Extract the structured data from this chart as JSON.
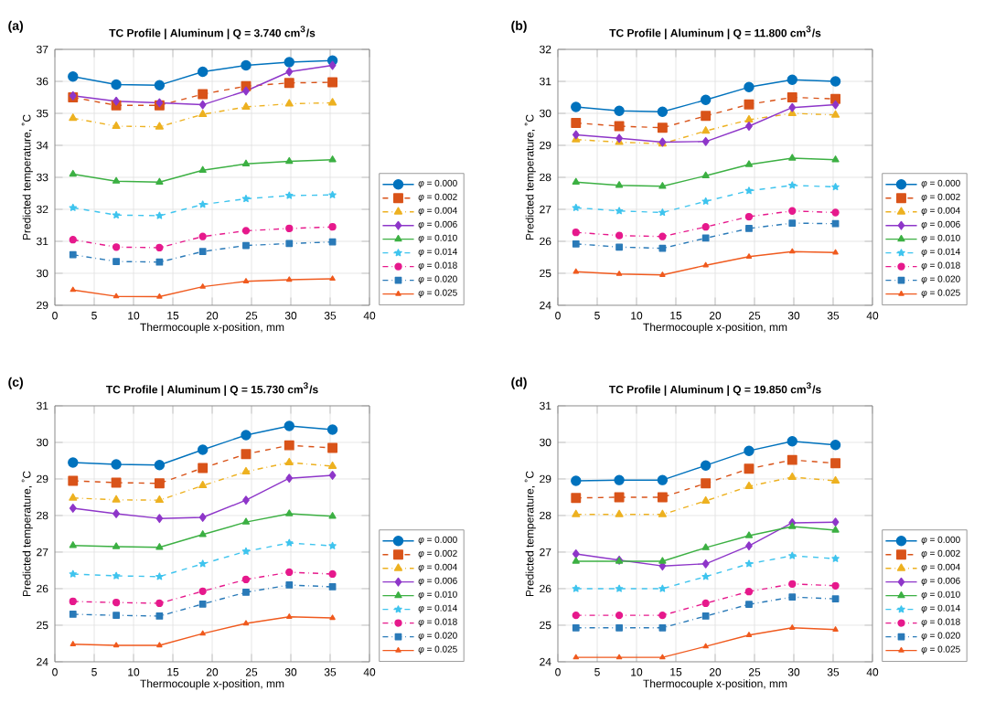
{
  "chart_data": [
    {
      "type": "line",
      "title": "TC Profile | Aluminum | Q = 3.740 cm$^{3}$/s",
      "xlabel": "Thermocouple x-position, mm",
      "ylabel": "Predicted temperature, ˚C",
      "annotations": [
        "(a)"
      ],
      "grid": true,
      "legend": "bottom right",
      "x": [
        2.3,
        7.8,
        13.3,
        18.8,
        24.3,
        29.8,
        35.3
      ],
      "xlim": [
        0,
        40
      ],
      "xticks": [
        0,
        5,
        10,
        15,
        20,
        25,
        30,
        35,
        40
      ],
      "ylim": [
        29,
        37
      ],
      "yticks": [
        29,
        30,
        31,
        32,
        33,
        34,
        35,
        36,
        37
      ],
      "series": [
        {
          "name": "*φ* = 0.000",
          "color": "#0072bd",
          "marker": "circle",
          "line_style": "solid",
          "values": [
            36.15,
            35.9,
            35.88,
            36.3,
            36.5,
            36.6,
            36.65
          ]
        },
        {
          "name": "*φ* = 0.002",
          "color": "#d95319",
          "marker": "square",
          "line_style": "dashed",
          "values": [
            35.5,
            35.25,
            35.25,
            35.6,
            35.85,
            35.95,
            35.97
          ]
        },
        {
          "name": "*φ* = 0.004",
          "color": "#edb120",
          "marker": "triangle",
          "line_style": "dotted",
          "values": [
            34.85,
            34.6,
            34.58,
            34.97,
            35.2,
            35.3,
            35.33
          ]
        },
        {
          "name": "*φ* = 0.006",
          "color": "#8e36c9",
          "marker": "diamond",
          "line_style": "solid",
          "values": [
            35.55,
            35.38,
            35.33,
            35.27,
            35.7,
            36.3,
            36.5
          ]
        },
        {
          "name": "*φ* = 0.010",
          "color": "#3cb043",
          "marker": "triangle",
          "line_style": "solid",
          "values": [
            33.1,
            32.88,
            32.85,
            33.22,
            33.42,
            33.5,
            33.55
          ]
        },
        {
          "name": "*φ* = 0.014",
          "color": "#3fc4ee",
          "marker": "star",
          "line_style": "dashed",
          "values": [
            32.05,
            31.82,
            31.8,
            32.15,
            32.33,
            32.43,
            32.45
          ]
        },
        {
          "name": "*φ* = 0.018",
          "color": "#e6198c",
          "marker": "circle",
          "line_style": "dotted",
          "values": [
            31.05,
            30.82,
            30.8,
            31.15,
            31.33,
            31.4,
            31.45
          ]
        },
        {
          "name": "*φ* = 0.020",
          "color": "#2a7ab8",
          "marker": "square",
          "line_style": "dotted",
          "values": [
            30.58,
            30.37,
            30.35,
            30.68,
            30.87,
            30.93,
            30.98
          ]
        },
        {
          "name": "*φ* = 0.025",
          "color": "#f05a1e",
          "marker": "triangle",
          "line_style": "solid",
          "values": [
            29.48,
            29.28,
            29.27,
            29.58,
            29.75,
            29.8,
            29.83
          ]
        }
      ]
    },
    {
      "type": "line",
      "title": "TC Profile | Aluminum | Q = 11.800 cm$^{3}$/s",
      "xlabel": "Thermocouple x-position, mm",
      "ylabel": "Predicted temperature, ˚C",
      "annotations": [
        "(b)"
      ],
      "grid": true,
      "legend": "bottom right",
      "x": [
        2.3,
        7.8,
        13.3,
        18.8,
        24.3,
        29.8,
        35.3
      ],
      "xlim": [
        0,
        40
      ],
      "xticks": [
        0,
        5,
        10,
        15,
        20,
        25,
        30,
        35,
        40
      ],
      "ylim": [
        24,
        32
      ],
      "yticks": [
        24,
        25,
        26,
        27,
        28,
        29,
        30,
        31,
        32
      ],
      "series": [
        {
          "name": "*φ* = 0.000",
          "color": "#0072bd",
          "marker": "circle",
          "line_style": "solid",
          "values": [
            30.2,
            30.08,
            30.05,
            30.42,
            30.82,
            31.05,
            31.0
          ]
        },
        {
          "name": "*φ* = 0.002",
          "color": "#d95319",
          "marker": "square",
          "line_style": "dashed",
          "values": [
            29.7,
            29.6,
            29.55,
            29.92,
            30.28,
            30.5,
            30.45
          ]
        },
        {
          "name": "*φ* = 0.004",
          "color": "#edb120",
          "marker": "triangle",
          "line_style": "dotted",
          "values": [
            29.18,
            29.1,
            29.05,
            29.45,
            29.8,
            30.0,
            29.95
          ]
        },
        {
          "name": "*φ* = 0.006",
          "color": "#8e36c9",
          "marker": "diamond",
          "line_style": "solid",
          "values": [
            29.33,
            29.22,
            29.1,
            29.12,
            29.6,
            30.18,
            30.27
          ]
        },
        {
          "name": "*φ* = 0.010",
          "color": "#3cb043",
          "marker": "triangle",
          "line_style": "solid",
          "values": [
            27.85,
            27.75,
            27.72,
            28.05,
            28.4,
            28.6,
            28.55
          ]
        },
        {
          "name": "*φ* = 0.014",
          "color": "#3fc4ee",
          "marker": "star",
          "line_style": "dashed",
          "values": [
            27.05,
            26.95,
            26.9,
            27.25,
            27.58,
            27.75,
            27.7
          ]
        },
        {
          "name": "*φ* = 0.018",
          "color": "#e6198c",
          "marker": "circle",
          "line_style": "dotted",
          "values": [
            26.28,
            26.18,
            26.15,
            26.45,
            26.77,
            26.95,
            26.9
          ]
        },
        {
          "name": "*φ* = 0.020",
          "color": "#2a7ab8",
          "marker": "square",
          "line_style": "dotted",
          "values": [
            25.92,
            25.82,
            25.78,
            26.1,
            26.4,
            26.57,
            26.55
          ]
        },
        {
          "name": "*φ* = 0.025",
          "color": "#f05a1e",
          "marker": "triangle",
          "line_style": "solid",
          "values": [
            25.05,
            24.98,
            24.95,
            25.25,
            25.52,
            25.68,
            25.65
          ]
        }
      ]
    },
    {
      "type": "line",
      "title": "TC Profile | Aluminum | Q = 15.730 cm$^{3}$/s",
      "xlabel": "Thermocouple x-position, mm",
      "ylabel": "Predicted temperature, ˚C",
      "annotations": [
        "(c)"
      ],
      "grid": true,
      "legend": "bottom right",
      "x": [
        2.3,
        7.8,
        13.3,
        18.8,
        24.3,
        29.8,
        35.3
      ],
      "xlim": [
        0,
        40
      ],
      "xticks": [
        0,
        5,
        10,
        15,
        20,
        25,
        30,
        35,
        40
      ],
      "ylim": [
        24,
        31
      ],
      "yticks": [
        24,
        25,
        26,
        27,
        28,
        29,
        30,
        31
      ],
      "series": [
        {
          "name": "*φ* = 0.000",
          "color": "#0072bd",
          "marker": "circle",
          "line_style": "solid",
          "values": [
            29.45,
            29.4,
            29.38,
            29.8,
            30.2,
            30.45,
            30.35
          ]
        },
        {
          "name": "*φ* = 0.002",
          "color": "#d95319",
          "marker": "square",
          "line_style": "dashed",
          "values": [
            28.95,
            28.9,
            28.88,
            29.3,
            29.68,
            29.92,
            29.85
          ]
        },
        {
          "name": "*φ* = 0.004",
          "color": "#edb120",
          "marker": "triangle",
          "line_style": "dotted",
          "values": [
            28.48,
            28.43,
            28.42,
            28.82,
            29.2,
            29.45,
            29.35
          ]
        },
        {
          "name": "*φ* = 0.006",
          "color": "#8e36c9",
          "marker": "diamond",
          "line_style": "solid",
          "values": [
            28.2,
            28.05,
            27.92,
            27.95,
            28.42,
            29.02,
            29.1
          ]
        },
        {
          "name": "*φ* = 0.010",
          "color": "#3cb043",
          "marker": "triangle",
          "line_style": "solid",
          "values": [
            27.18,
            27.15,
            27.13,
            27.48,
            27.82,
            28.05,
            27.98
          ]
        },
        {
          "name": "*φ* = 0.014",
          "color": "#3fc4ee",
          "marker": "star",
          "line_style": "dashed",
          "values": [
            26.4,
            26.35,
            26.33,
            26.68,
            27.02,
            27.25,
            27.17
          ]
        },
        {
          "name": "*φ* = 0.018",
          "color": "#e6198c",
          "marker": "circle",
          "line_style": "dotted",
          "values": [
            25.65,
            25.62,
            25.6,
            25.93,
            26.25,
            26.45,
            26.4
          ]
        },
        {
          "name": "*φ* = 0.020",
          "color": "#2a7ab8",
          "marker": "square",
          "line_style": "dotted",
          "values": [
            25.3,
            25.27,
            25.25,
            25.58,
            25.9,
            26.1,
            26.05
          ]
        },
        {
          "name": "*φ* = 0.025",
          "color": "#f05a1e",
          "marker": "triangle",
          "line_style": "solid",
          "values": [
            24.48,
            24.45,
            24.45,
            24.77,
            25.05,
            25.23,
            25.2
          ]
        }
      ]
    },
    {
      "type": "line",
      "title": "TC Profile | Aluminum | Q = 19.850 cm$^{3}$/s",
      "xlabel": "Thermocouple x-position, mm",
      "ylabel": "Predicted temperature, ˚C",
      "annotations": [
        "(d)"
      ],
      "grid": true,
      "legend": "bottom right",
      "x": [
        2.3,
        7.8,
        13.3,
        18.8,
        24.3,
        29.8,
        35.3
      ],
      "xlim": [
        0,
        40
      ],
      "xticks": [
        0,
        5,
        10,
        15,
        20,
        25,
        30,
        35,
        40
      ],
      "ylim": [
        24,
        31
      ],
      "yticks": [
        24,
        25,
        26,
        27,
        28,
        29,
        30,
        31
      ],
      "series": [
        {
          "name": "*φ* = 0.000",
          "color": "#0072bd",
          "marker": "circle",
          "line_style": "solid",
          "values": [
            28.95,
            28.97,
            28.97,
            29.37,
            29.77,
            30.03,
            29.93
          ]
        },
        {
          "name": "*φ* = 0.002",
          "color": "#d95319",
          "marker": "square",
          "line_style": "dashed",
          "values": [
            28.48,
            28.5,
            28.5,
            28.88,
            29.28,
            29.52,
            29.43
          ]
        },
        {
          "name": "*φ* = 0.004",
          "color": "#edb120",
          "marker": "triangle",
          "line_style": "dotted",
          "values": [
            28.03,
            28.03,
            28.03,
            28.4,
            28.8,
            29.05,
            28.95
          ]
        },
        {
          "name": "*φ* = 0.006",
          "color": "#8e36c9",
          "marker": "diamond",
          "line_style": "solid",
          "values": [
            26.95,
            26.78,
            26.62,
            26.68,
            27.17,
            27.8,
            27.82
          ]
        },
        {
          "name": "*φ* = 0.010",
          "color": "#3cb043",
          "marker": "triangle",
          "line_style": "solid",
          "values": [
            26.75,
            26.75,
            26.75,
            27.12,
            27.45,
            27.7,
            27.6
          ]
        },
        {
          "name": "*φ* = 0.014",
          "color": "#3fc4ee",
          "marker": "star",
          "line_style": "dashed",
          "values": [
            26.0,
            26.0,
            26.0,
            26.33,
            26.68,
            26.9,
            26.82
          ]
        },
        {
          "name": "*φ* = 0.018",
          "color": "#e6198c",
          "marker": "circle",
          "line_style": "dotted",
          "values": [
            25.27,
            25.27,
            25.27,
            25.6,
            25.92,
            26.13,
            26.08
          ]
        },
        {
          "name": "*φ* = 0.020",
          "color": "#2a7ab8",
          "marker": "square",
          "line_style": "dotted",
          "values": [
            24.93,
            24.93,
            24.93,
            25.25,
            25.57,
            25.77,
            25.72
          ]
        },
        {
          "name": "*φ* = 0.025",
          "color": "#f05a1e",
          "marker": "triangle",
          "line_style": "solid",
          "values": [
            24.12,
            24.12,
            24.12,
            24.42,
            24.73,
            24.93,
            24.88
          ]
        }
      ]
    }
  ]
}
